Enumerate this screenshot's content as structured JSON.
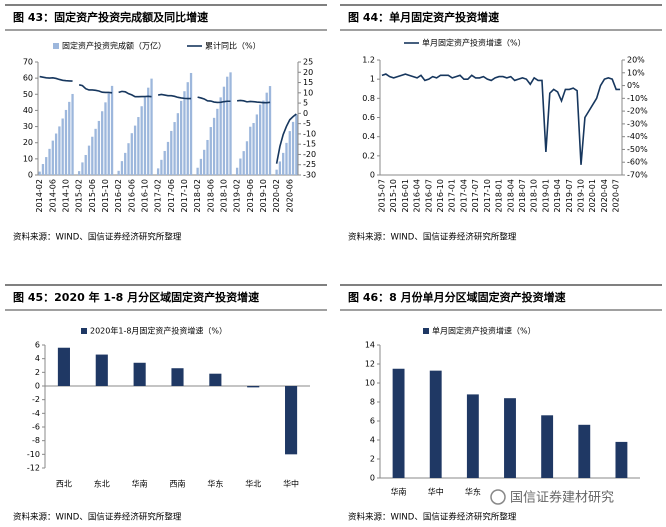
{
  "chart_data": [
    {
      "type": "combo",
      "title": "图 43：固定资产投资完成额及同比增速",
      "source": "资料来源：WIND、国信证券经济研究所整理",
      "categories": [
        "2014-02",
        null,
        null,
        null,
        "2014-06",
        null,
        null,
        null,
        "2014-10",
        null,
        null,
        null,
        "2015-02",
        null,
        null,
        null,
        "2015-06",
        null,
        null,
        null,
        "2015-10",
        null,
        null,
        null,
        "2016-02",
        null,
        null,
        null,
        "2016-06",
        null,
        null,
        null,
        "2016-10",
        null,
        null,
        null,
        "2017-02",
        null,
        null,
        null,
        "2017-06",
        null,
        null,
        null,
        "2017-10",
        null,
        null,
        null,
        "2018-02",
        null,
        null,
        null,
        "2018-06",
        null,
        null,
        null,
        "2018-10",
        null,
        null,
        null,
        "2019-02",
        null,
        null,
        null,
        "2019-06",
        null,
        null,
        null,
        "2019-10",
        null,
        null,
        null,
        "2020-02",
        null,
        null,
        null,
        "2020-06",
        null,
        null
      ],
      "series": [
        {
          "name": "固定资产投资完成额（万亿）",
          "color": "#9db7dc",
          "values": [
            2.1,
            6.8,
            11.1,
            16.2,
            21.3,
            25.7,
            30.1,
            35.0,
            40.3,
            45.3,
            50.2,
            null,
            2.4,
            7.8,
            12.4,
            18.2,
            23.7,
            28.6,
            33.5,
            39.5,
            45.0,
            50.5,
            55.2,
            null,
            2.6,
            8.6,
            13.7,
            19.7,
            25.9,
            30.6,
            35.9,
            42.6,
            48.1,
            54.1,
            59.7,
            null,
            4.1,
            9.4,
            14.9,
            20.5,
            27.3,
            32.8,
            38.3,
            45.9,
            51.9,
            57.5,
            63.2,
            null,
            4.5,
            10.0,
            15.6,
            21.7,
            29.7,
            35.4,
            41.0,
            48.1,
            54.7,
            60.9,
            63.6,
            null,
            4.5,
            10.2,
            14.8,
            20.9,
            29.9,
            32.2,
            37.5,
            43.6,
            46.1,
            51.0,
            55.1,
            null,
            3.3,
            8.4,
            13.7,
            19.9,
            27.2,
            32.9,
            37.5
          ]
        },
        {
          "name": "累计同比（%）",
          "color": "#17375e",
          "axis": "y2",
          "values": [
            17.9,
            17.6,
            17.3,
            17.2,
            17.3,
            17.0,
            16.5,
            16.1,
            15.9,
            15.8,
            15.7,
            null,
            13.9,
            13.5,
            12.0,
            11.4,
            11.4,
            11.2,
            10.9,
            10.3,
            10.2,
            10.2,
            10.0,
            null,
            10.2,
            10.7,
            10.5,
            9.6,
            9.0,
            8.1,
            8.1,
            8.2,
            8.2,
            8.3,
            8.1,
            null,
            8.9,
            9.2,
            8.9,
            8.6,
            8.6,
            8.3,
            7.8,
            7.5,
            7.3,
            7.2,
            7.2,
            null,
            7.9,
            7.5,
            7.0,
            6.1,
            6.0,
            5.5,
            5.3,
            5.4,
            5.7,
            5.9,
            5.9,
            null,
            6.1,
            6.3,
            6.1,
            5.6,
            5.8,
            5.7,
            5.5,
            5.4,
            5.2,
            5.2,
            5.4,
            null,
            -24.5,
            -16.1,
            -10.3,
            -6.3,
            -3.1,
            -1.6,
            -0.3
          ]
        }
      ],
      "ylim": [
        0,
        70
      ],
      "yticks": [
        0,
        10,
        20,
        30,
        40,
        50,
        60,
        70
      ],
      "y2lim": [
        -30,
        25
      ],
      "y2ticks": [
        -30,
        -25,
        -20,
        -15,
        -10,
        -5,
        0,
        5,
        10,
        15,
        20,
        25
      ]
    },
    {
      "type": "line",
      "title": "图 44：单月固定资产投资增速",
      "source": "资料来源：WIND、国信证券经济研究所整理",
      "categories": [
        "2015-07",
        null,
        null,
        "2015-10",
        null,
        null,
        "2016-01",
        null,
        null,
        "2016-04",
        null,
        null,
        "2016-07",
        null,
        null,
        "2016-10",
        null,
        null,
        "2017-01",
        null,
        null,
        "2017-04",
        null,
        null,
        "2017-07",
        null,
        null,
        "2017-10",
        null,
        null,
        "2018-01",
        null,
        null,
        "2018-04",
        null,
        null,
        "2018-07",
        null,
        null,
        "2018-10",
        null,
        null,
        "2019-01",
        null,
        null,
        "2019-04",
        null,
        null,
        "2019-07",
        null,
        null,
        "2019-10",
        null,
        null,
        "2020-01",
        null,
        null,
        "2020-04",
        null,
        null,
        "2020-07",
        null
      ],
      "series": [
        {
          "name": "单月固定资产投资增速（%）",
          "color": "#17375e",
          "axis": "y2",
          "values": [
            8,
            9,
            7,
            6,
            7,
            8,
            9,
            8,
            7,
            6,
            8,
            4,
            5,
            7,
            6,
            8,
            8,
            8,
            6,
            7,
            8,
            5,
            5,
            8,
            6,
            6,
            7,
            5,
            4,
            6,
            7,
            7,
            6,
            7,
            4,
            5,
            6,
            5,
            1,
            6,
            4,
            4,
            -52,
            -6,
            -3,
            -5,
            -12,
            -3,
            -3,
            -2,
            -4,
            -62,
            -25,
            -20,
            -15,
            -10,
            0,
            5,
            6,
            5,
            -3,
            -3
          ]
        }
      ],
      "ylim": [
        0,
        1.2
      ],
      "yticks": [
        0,
        0.2,
        0.4,
        0.6,
        0.8,
        1,
        1.2
      ],
      "y2lim": [
        -70,
        20
      ],
      "y2ticks": [
        {
          "value": -70,
          "label": "-70%"
        },
        {
          "value": -60,
          "label": "-60%"
        },
        {
          "value": -50,
          "label": "-50%"
        },
        {
          "value": -40,
          "label": "-40%"
        },
        {
          "value": -30,
          "label": "-30%"
        },
        {
          "value": -20,
          "label": "-20%"
        },
        {
          "value": -10,
          "label": "-10%"
        },
        {
          "value": 0,
          "label": "0%"
        },
        {
          "value": 10,
          "label": "10%"
        },
        {
          "value": 20,
          "label": "20%"
        }
      ]
    },
    {
      "type": "bar",
      "title": "图 45：2020 年 1-8 月分区域固定资产投资增速",
      "source": "资料来源：WIND、国信证券经济研究所整理",
      "categories": [
        "西北",
        "东北",
        "华南",
        "西南",
        "华东",
        "华北",
        "华中"
      ],
      "series": [
        {
          "name": "2020年1-8月固定资产投资增速（%）",
          "color": "#1f3864",
          "values": [
            5.6,
            4.6,
            3.4,
            2.6,
            1.8,
            -0.2,
            -10
          ]
        }
      ],
      "ylim": [
        -12,
        6
      ],
      "yticks": [
        -12,
        -10,
        -8,
        -6,
        -4,
        -2,
        0,
        2,
        4,
        6
      ]
    },
    {
      "type": "bar",
      "title": "图 46：8 月份单月分区域固定资产投资增速",
      "source": "资料来源：WIND、国信证券经济研究所整理",
      "categories": [
        "华南",
        "华中",
        "华东",
        null,
        null,
        null,
        null
      ],
      "series": [
        {
          "name": "单月固定资产投资增速（%）",
          "color": "#1f3864",
          "values": [
            11.5,
            11.3,
            8.8,
            8.4,
            6.6,
            5.6,
            3.8
          ]
        }
      ],
      "ylim": [
        0,
        14
      ],
      "yticks": [
        0,
        2,
        4,
        6,
        8,
        10,
        12,
        14
      ]
    }
  ],
  "watermark": "国信证券建材研究"
}
